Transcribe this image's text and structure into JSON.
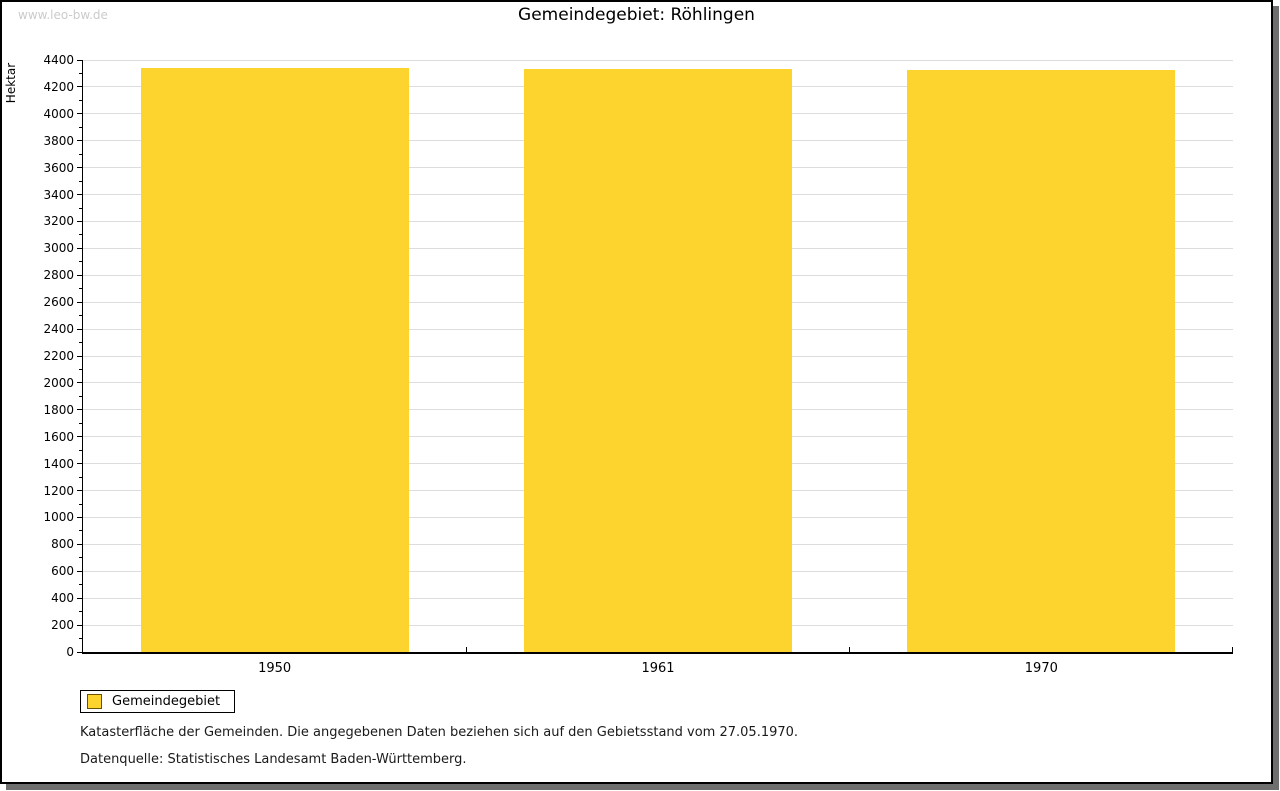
{
  "page": {
    "watermark": "www.leo-bw.de",
    "title": "Gemeindegebiet: Röhlingen"
  },
  "chart_data": {
    "type": "bar",
    "title": "Gemeindegebiet: Röhlingen",
    "categories": [
      "1950",
      "1961",
      "1970"
    ],
    "series": [
      {
        "name": "Gemeindegebiet",
        "values": [
          4341,
          4334,
          4329
        ]
      }
    ],
    "xlabel": "",
    "ylabel": "Hektar",
    "ylim": [
      0,
      4400
    ],
    "y_major_step": 200,
    "y_minor_step": 100,
    "grid": "horizontal-major-only",
    "legend_position": "bottom-left",
    "bar_color": "#FDD42D",
    "gridline_color": "#DDDDDD"
  },
  "legend": {
    "items": [
      {
        "label": "Gemeindegebiet",
        "color": "#FDD42D"
      }
    ]
  },
  "footer": {
    "line1": "Katasterfläche der Gemeinden. Die angegebenen Daten beziehen sich auf den Gebietsstand vom 27.05.1970.",
    "line2": "Datenquelle: Statistisches Landesamt Baden-Württemberg."
  }
}
